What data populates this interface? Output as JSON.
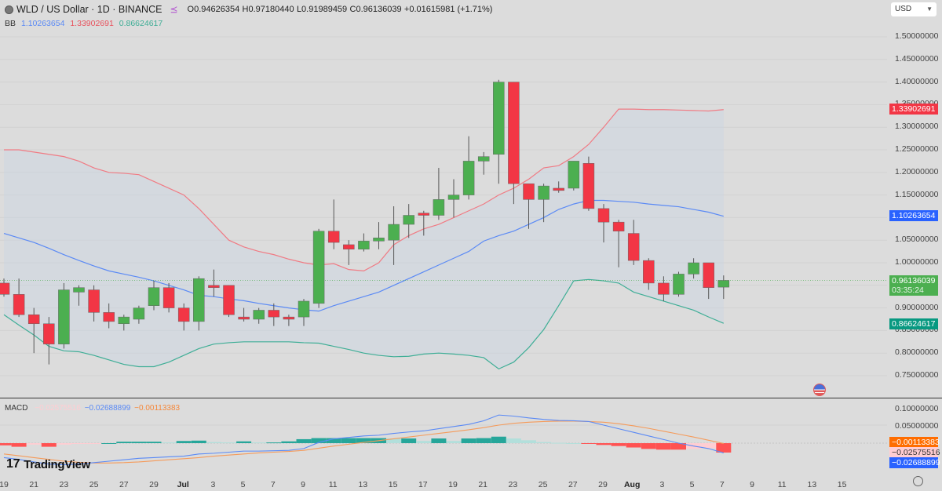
{
  "header": {
    "symbol_title": "WLD / US Dollar · 1D · BINANCE",
    "ohlc": {
      "open": "O0.94626354",
      "high": "H0.97180440",
      "low": "L0.91989459",
      "close": "C0.96136039",
      "change": "+0.01615981 (+1.71%)"
    }
  },
  "bb_legend": {
    "label": "BB",
    "basis": "1.10263654",
    "upper": "1.33902691",
    "lower": "0.86624617"
  },
  "currency_select": {
    "value": "USD"
  },
  "price_axis": {
    "ticks": [
      "1.50000000",
      "1.45000000",
      "1.40000000",
      "1.35000000",
      "1.30000000",
      "1.25000000",
      "1.20000000",
      "1.15000000",
      "1.10000000",
      "1.05000000",
      "1.00000000",
      "0.95000000",
      "0.90000000",
      "0.85000000",
      "0.80000000",
      "0.75000000"
    ],
    "tags": {
      "upper": "1.33902691",
      "basis": "1.10263654",
      "last_price": "0.96136039",
      "countdown": "03:35:24",
      "lower": "0.86624617"
    }
  },
  "macd_legend": {
    "label": "MACD",
    "histogram": "−0.02575516",
    "macd": "−0.02688899",
    "signal": "−0.00113383"
  },
  "macd_axis": {
    "ticks": [
      "0.10000000",
      "0.05000000"
    ],
    "tags": {
      "signal": "−0.00113383",
      "histogram": "−0.02575516",
      "macd": "−0.02688899"
    }
  },
  "time_axis": {
    "labels": [
      "19",
      "21",
      "23",
      "25",
      "27",
      "29",
      "Jul",
      "3",
      "5",
      "7",
      "9",
      "11",
      "13",
      "15",
      "17",
      "19",
      "21",
      "23",
      "25",
      "27",
      "29",
      "Aug",
      "3",
      "5",
      "7",
      "9",
      "11",
      "13",
      "15"
    ]
  },
  "branding": {
    "text": "TradingView"
  },
  "colors": {
    "up": "#4caf50",
    "down": "#f23645",
    "bb_upper": "#f07b84",
    "bb_basis": "#5b8af5",
    "bb_lower": "#3fae96",
    "macd_line": "#5b8af5",
    "signal_line": "#f59b5b",
    "hist_up_strong": "#26a69a",
    "hist_up_weak": "#b2dfdb",
    "hist_down_strong": "#ff5252",
    "hist_down_weak": "#ffcdd2"
  },
  "chart_data": {
    "type": "candlestick",
    "title": "WLD / US Dollar · 1D · BINANCE",
    "x": [
      "Jun 19",
      "Jun 20",
      "Jun 21",
      "Jun 22",
      "Jun 23",
      "Jun 24",
      "Jun 25",
      "Jun 26",
      "Jun 27",
      "Jun 28",
      "Jun 29",
      "Jun 30",
      "Jul 1",
      "Jul 2",
      "Jul 3",
      "Jul 4",
      "Jul 5",
      "Jul 6",
      "Jul 7",
      "Jul 8",
      "Jul 9",
      "Jul 10",
      "Jul 11",
      "Jul 12",
      "Jul 13",
      "Jul 14",
      "Jul 15",
      "Jul 16",
      "Jul 17",
      "Jul 18",
      "Jul 19",
      "Jul 20",
      "Jul 21",
      "Jul 22",
      "Jul 23",
      "Jul 24",
      "Jul 25",
      "Jul 26",
      "Jul 27",
      "Jul 28",
      "Jul 29",
      "Jul 30",
      "Jul 31",
      "Aug 1",
      "Aug 2",
      "Aug 3",
      "Aug 4",
      "Aug 5",
      "Aug 6"
    ],
    "ohlc": [
      [
        0.955,
        0.965,
        0.925,
        0.93
      ],
      [
        0.93,
        0.965,
        0.88,
        0.885
      ],
      [
        0.885,
        0.9,
        0.8,
        0.865
      ],
      [
        0.865,
        0.88,
        0.775,
        0.82
      ],
      [
        0.82,
        0.955,
        0.81,
        0.94
      ],
      [
        0.935,
        0.95,
        0.905,
        0.945
      ],
      [
        0.94,
        0.95,
        0.87,
        0.89
      ],
      [
        0.89,
        0.91,
        0.855,
        0.87
      ],
      [
        0.865,
        0.885,
        0.85,
        0.88
      ],
      [
        0.875,
        0.905,
        0.865,
        0.9
      ],
      [
        0.905,
        0.96,
        0.895,
        0.945
      ],
      [
        0.945,
        0.955,
        0.89,
        0.9
      ],
      [
        0.9,
        0.91,
        0.85,
        0.87
      ],
      [
        0.87,
        0.97,
        0.85,
        0.965
      ],
      [
        0.95,
        0.985,
        0.925,
        0.945
      ],
      [
        0.95,
        0.95,
        0.88,
        0.885
      ],
      [
        0.88,
        0.9,
        0.87,
        0.875
      ],
      [
        0.875,
        0.9,
        0.865,
        0.895
      ],
      [
        0.895,
        0.91,
        0.86,
        0.88
      ],
      [
        0.88,
        0.885,
        0.86,
        0.875
      ],
      [
        0.88,
        0.92,
        0.86,
        0.915
      ],
      [
        0.91,
        1.075,
        0.9,
        1.07
      ],
      [
        1.07,
        1.14,
        1.03,
        1.045
      ],
      [
        1.04,
        1.05,
        0.995,
        1.03
      ],
      [
        1.03,
        1.065,
        1.025,
        1.048
      ],
      [
        1.048,
        1.09,
        1.03,
        1.055
      ],
      [
        1.05,
        1.125,
        0.995,
        1.085
      ],
      [
        1.085,
        1.13,
        1.055,
        1.105
      ],
      [
        1.11,
        1.115,
        1.06,
        1.105
      ],
      [
        1.105,
        1.21,
        1.095,
        1.14
      ],
      [
        1.14,
        1.185,
        1.1,
        1.15
      ],
      [
        1.15,
        1.28,
        1.14,
        1.225
      ],
      [
        1.225,
        1.245,
        1.195,
        1.235
      ],
      [
        1.24,
        1.405,
        1.175,
        1.4
      ],
      [
        1.4,
        1.4,
        1.13,
        1.175
      ],
      [
        1.175,
        1.165,
        1.075,
        1.14
      ],
      [
        1.14,
        1.175,
        1.09,
        1.17
      ],
      [
        1.165,
        1.18,
        1.155,
        1.16
      ],
      [
        1.165,
        1.225,
        1.16,
        1.225
      ],
      [
        1.22,
        1.235,
        1.115,
        1.12
      ],
      [
        1.12,
        1.13,
        1.045,
        1.09
      ],
      [
        1.09,
        1.095,
        0.99,
        1.07
      ],
      [
        1.065,
        1.095,
        0.995,
        1.005
      ],
      [
        1.005,
        1.01,
        0.94,
        0.955
      ],
      [
        0.955,
        0.97,
        0.915,
        0.93
      ],
      [
        0.93,
        0.98,
        0.925,
        0.975
      ],
      [
        0.975,
        1.01,
        0.965,
        1.0
      ],
      [
        1.0,
        1.0,
        0.92,
        0.945
      ],
      [
        0.946,
        0.972,
        0.92,
        0.961
      ]
    ],
    "bollinger": {
      "upper": [
        1.25,
        1.25,
        1.245,
        1.24,
        1.235,
        1.225,
        1.21,
        1.2,
        1.198,
        1.195,
        1.18,
        1.165,
        1.15,
        1.12,
        1.085,
        1.05,
        1.035,
        1.025,
        1.018,
        1.008,
        1.0,
        0.995,
        0.998,
        0.985,
        0.982,
        1.0,
        1.04,
        1.06,
        1.075,
        1.085,
        1.1,
        1.115,
        1.13,
        1.15,
        1.165,
        1.185,
        1.21,
        1.215,
        1.235,
        1.262,
        1.3,
        1.34,
        1.34,
        1.339,
        1.339,
        1.338,
        1.337,
        1.336,
        1.339
      ],
      "basis": [
        1.065,
        1.055,
        1.045,
        1.032,
        1.018,
        1.005,
        0.993,
        0.982,
        0.975,
        0.968,
        0.96,
        0.95,
        0.94,
        0.928,
        0.925,
        0.92,
        0.916,
        0.91,
        0.905,
        0.9,
        0.896,
        0.893,
        0.905,
        0.915,
        0.925,
        0.935,
        0.95,
        0.965,
        0.98,
        0.995,
        1.01,
        1.025,
        1.048,
        1.06,
        1.07,
        1.085,
        1.1,
        1.118,
        1.13,
        1.138,
        1.138,
        1.136,
        1.134,
        1.13,
        1.127,
        1.124,
        1.118,
        1.112,
        1.103
      ],
      "lower": [
        0.885,
        0.862,
        0.84,
        0.815,
        0.805,
        0.803,
        0.795,
        0.785,
        0.775,
        0.77,
        0.77,
        0.78,
        0.795,
        0.81,
        0.82,
        0.823,
        0.825,
        0.825,
        0.825,
        0.825,
        0.823,
        0.822,
        0.815,
        0.808,
        0.8,
        0.795,
        0.792,
        0.793,
        0.798,
        0.8,
        0.798,
        0.795,
        0.79,
        0.765,
        0.78,
        0.812,
        0.852,
        0.905,
        0.96,
        0.963,
        0.96,
        0.955,
        0.935,
        0.925,
        0.915,
        0.905,
        0.895,
        0.88,
        0.866
      ]
    },
    "macd": {
      "histogram": [
        -0.006,
        -0.01,
        -0.004,
        -0.01,
        -0.004,
        -0.002,
        -0.001,
        0.0,
        0.004,
        0.004,
        0.004,
        0.002,
        0.006,
        0.007,
        0.003,
        0.002,
        0.005,
        0.002,
        0.002,
        0.005,
        0.011,
        0.014,
        0.014,
        0.014,
        0.014,
        0.014,
        0.013,
        0.013,
        0.006,
        0.013,
        0.006,
        0.013,
        0.014,
        0.018,
        0.013,
        0.008,
        0.003,
        0.001,
        0.0,
        -0.001,
        -0.005,
        -0.008,
        -0.012,
        -0.016,
        -0.018,
        -0.018,
        -0.016,
        -0.014,
        -0.026
      ],
      "macd_line": [
        -0.04,
        -0.045,
        -0.052,
        -0.058,
        -0.06,
        -0.058,
        -0.054,
        -0.05,
        -0.046,
        -0.042,
        -0.04,
        -0.038,
        -0.036,
        -0.03,
        -0.028,
        -0.025,
        -0.022,
        -0.022,
        -0.021,
        -0.02,
        -0.015,
        0.002,
        0.012,
        0.016,
        0.02,
        0.022,
        0.027,
        0.031,
        0.034,
        0.04,
        0.046,
        0.052,
        0.062,
        0.078,
        0.075,
        0.07,
        0.066,
        0.063,
        0.062,
        0.06,
        0.05,
        0.04,
        0.03,
        0.02,
        0.01,
        0.0,
        -0.008,
        -0.015,
        -0.027
      ],
      "signal_line": [
        -0.03,
        -0.035,
        -0.04,
        -0.045,
        -0.05,
        -0.053,
        -0.055,
        -0.055,
        -0.054,
        -0.052,
        -0.049,
        -0.046,
        -0.043,
        -0.04,
        -0.036,
        -0.033,
        -0.03,
        -0.027,
        -0.025,
        -0.023,
        -0.02,
        -0.014,
        -0.008,
        -0.003,
        0.002,
        0.007,
        0.012,
        0.017,
        0.022,
        0.027,
        0.032,
        0.037,
        0.043,
        0.05,
        0.055,
        0.058,
        0.06,
        0.061,
        0.061,
        0.06,
        0.058,
        0.054,
        0.048,
        0.041,
        0.033,
        0.025,
        0.017,
        0.008,
        -0.001
      ]
    },
    "ylim": [
      0.72,
      1.52
    ],
    "legend": [
      "BB basis 1.10263654",
      "BB upper 1.33902691",
      "BB lower 0.86624617",
      "MACD −0.02688899",
      "Signal −0.00113383",
      "Histogram −0.02575516"
    ],
    "grid": true
  }
}
